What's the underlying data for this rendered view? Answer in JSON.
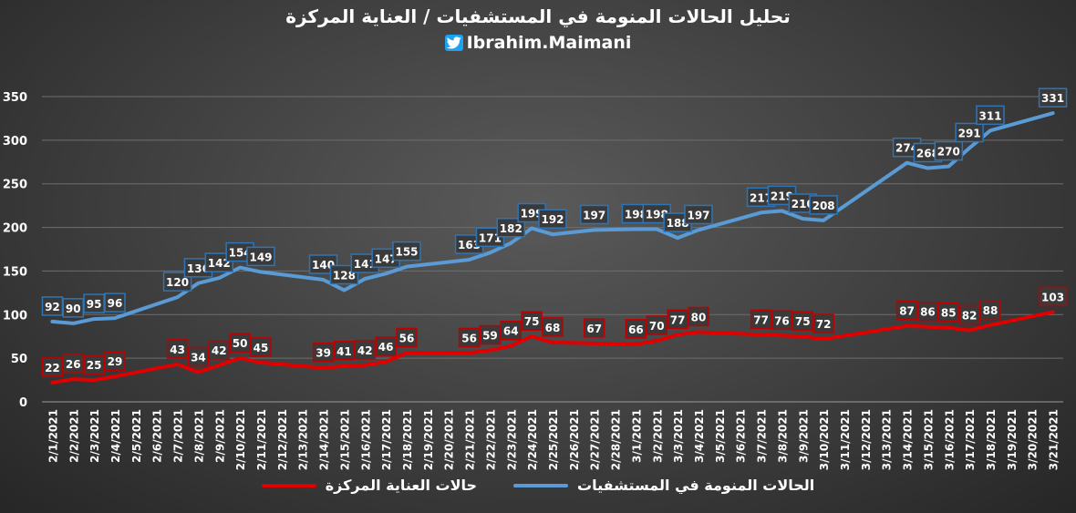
{
  "chart_data": {
    "type": "line",
    "title": "تحليل الحالات المنومة في المستشفيات / العناية المركزة",
    "handle": "Ibrahim.Maimani",
    "ylim": [
      0,
      350
    ],
    "yticks": [
      0,
      50,
      100,
      150,
      200,
      250,
      300,
      350
    ],
    "grid": true,
    "legend_position": "bottom",
    "categories": [
      "2/1/2021",
      "2/2/2021",
      "2/3/2021",
      "2/4/2021",
      "2/5/2021",
      "2/6/2021",
      "2/7/2021",
      "2/8/2021",
      "2/9/2021",
      "2/10/2021",
      "2/11/2021",
      "2/12/2021",
      "2/13/2021",
      "2/14/2021",
      "2/15/2021",
      "2/16/2021",
      "2/17/2021",
      "2/18/2021",
      "2/19/2021",
      "2/20/2021",
      "2/21/2021",
      "2/22/2021",
      "2/23/2021",
      "2/24/2021",
      "2/25/2021",
      "2/26/2021",
      "2/27/2021",
      "2/28/2021",
      "3/1/2021",
      "3/2/2021",
      "3/3/2021",
      "3/4/2021",
      "3/5/2021",
      "3/6/2021",
      "3/7/2021",
      "3/8/2021",
      "3/9/2021",
      "3/10/2021",
      "3/11/2021",
      "3/12/2021",
      "3/13/2021",
      "3/14/2021",
      "3/15/2021",
      "3/16/2021",
      "3/17/2021",
      "3/18/2021",
      "3/19/2021",
      "3/20/2021",
      "3/21/2021"
    ],
    "series": [
      {
        "name": "الحالات المنومة في المستشفيات",
        "color": "#5b9bd5",
        "values": [
          92,
          90,
          95,
          96,
          null,
          null,
          120,
          136,
          142,
          154,
          149,
          null,
          null,
          140,
          128,
          141,
          147,
          155,
          null,
          null,
          163,
          171,
          182,
          199,
          192,
          null,
          197,
          null,
          198,
          198,
          188,
          197,
          null,
          null,
          217,
          219,
          210,
          208,
          null,
          null,
          null,
          274,
          268,
          270,
          291,
          311,
          null,
          null,
          331
        ],
        "labels": [
          92,
          90,
          95,
          96,
          null,
          null,
          120,
          136,
          142,
          154,
          149,
          null,
          null,
          140,
          128,
          141,
          147,
          155,
          null,
          null,
          163,
          171,
          182,
          199,
          192,
          null,
          197,
          null,
          198,
          198,
          188,
          197,
          null,
          null,
          217,
          219,
          210,
          208,
          null,
          null,
          null,
          274,
          268,
          270,
          291,
          311,
          null,
          null,
          331
        ],
        "label_color": "#2e75b6"
      },
      {
        "name": "حالات العناية المركزة",
        "color": "#e00000",
        "values": [
          22,
          26,
          25,
          29,
          null,
          null,
          43,
          34,
          42,
          50,
          45,
          null,
          null,
          39,
          41,
          42,
          46,
          56,
          null,
          null,
          56,
          59,
          64,
          75,
          68,
          null,
          67,
          66,
          66,
          70,
          77,
          80,
          null,
          null,
          77,
          76,
          75,
          72,
          null,
          null,
          null,
          87,
          86,
          85,
          82,
          88,
          null,
          null,
          103
        ],
        "labels": [
          22,
          26,
          25,
          29,
          null,
          null,
          43,
          34,
          42,
          50,
          45,
          null,
          null,
          39,
          41,
          42,
          46,
          56,
          null,
          null,
          56,
          59,
          64,
          75,
          68,
          null,
          67,
          null,
          66,
          70,
          77,
          80,
          null,
          null,
          77,
          76,
          75,
          72,
          null,
          null,
          null,
          87,
          86,
          85,
          82,
          88,
          null,
          null,
          103
        ],
        "label_color": "#c00000"
      }
    ]
  }
}
